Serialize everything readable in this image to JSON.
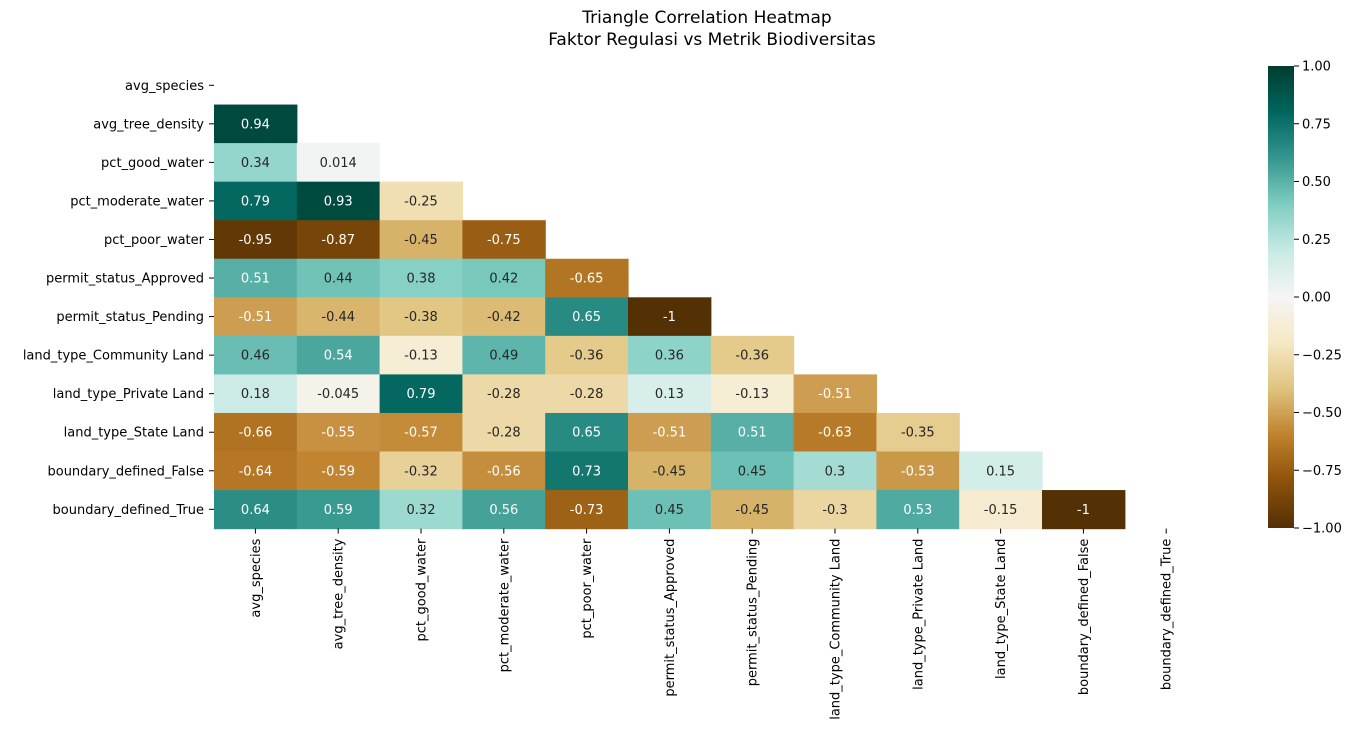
{
  "chart_data": {
    "type": "heatmap",
    "title": "Triangle Correlation Heatmap",
    "subtitle": "Faktor Regulasi vs Metrik Biodiversitas",
    "labels": [
      "avg_species",
      "avg_tree_density",
      "pct_good_water",
      "pct_moderate_water",
      "pct_poor_water",
      "permit_status_Approved",
      "permit_status_Pending",
      "land_type_Community Land",
      "land_type_Private Land",
      "land_type_State Land",
      "boundary_defined_False",
      "boundary_defined_True"
    ],
    "matrix": [
      [],
      [
        "0.94"
      ],
      [
        "0.34",
        "0.014"
      ],
      [
        "0.79",
        "0.93",
        "-0.25"
      ],
      [
        "-0.95",
        "-0.87",
        "-0.45",
        "-0.75"
      ],
      [
        "0.51",
        "0.44",
        "0.38",
        "0.42",
        "-0.65"
      ],
      [
        "-0.51",
        "-0.44",
        "-0.38",
        "-0.42",
        "0.65",
        "-1"
      ],
      [
        "0.46",
        "0.54",
        "-0.13",
        "0.49",
        "-0.36",
        "0.36",
        "-0.36"
      ],
      [
        "0.18",
        "-0.045",
        "0.79",
        "-0.28",
        "-0.28",
        "0.13",
        "-0.13",
        "-0.51"
      ],
      [
        "-0.66",
        "-0.55",
        "-0.57",
        "-0.28",
        "0.65",
        "-0.51",
        "0.51",
        "-0.63",
        "-0.35"
      ],
      [
        "-0.64",
        "-0.59",
        "-0.32",
        "-0.56",
        "0.73",
        "-0.45",
        "0.45",
        "0.3",
        "-0.53",
        "0.15"
      ],
      [
        "0.64",
        "0.59",
        "0.32",
        "0.56",
        "-0.73",
        "0.45",
        "-0.45",
        "-0.3",
        "0.53",
        "-0.15",
        "-1"
      ]
    ],
    "mask": "upper triangle including diagonal",
    "colormap": "BrBG",
    "vmin": -1,
    "vmax": 1,
    "colorbar_ticks": [
      "1.00",
      "0.75",
      "0.50",
      "0.25",
      "0.00",
      "−0.25",
      "−0.50",
      "−0.75",
      "−1.00"
    ],
    "colorbar_tick_values": [
      1,
      0.75,
      0.5,
      0.25,
      0,
      -0.25,
      -0.5,
      -0.75,
      -1
    ],
    "colormap_stops": [
      [
        -1.0,
        "#543005"
      ],
      [
        -0.8,
        "#8c510a"
      ],
      [
        -0.6,
        "#bf812d"
      ],
      [
        -0.4,
        "#dfc27d"
      ],
      [
        -0.2,
        "#f6e8c3"
      ],
      [
        0.0,
        "#f5f5f5"
      ],
      [
        0.2,
        "#c7eae5"
      ],
      [
        0.4,
        "#80cdc1"
      ],
      [
        0.6,
        "#35978f"
      ],
      [
        0.8,
        "#01665e"
      ],
      [
        1.0,
        "#003c30"
      ]
    ]
  }
}
